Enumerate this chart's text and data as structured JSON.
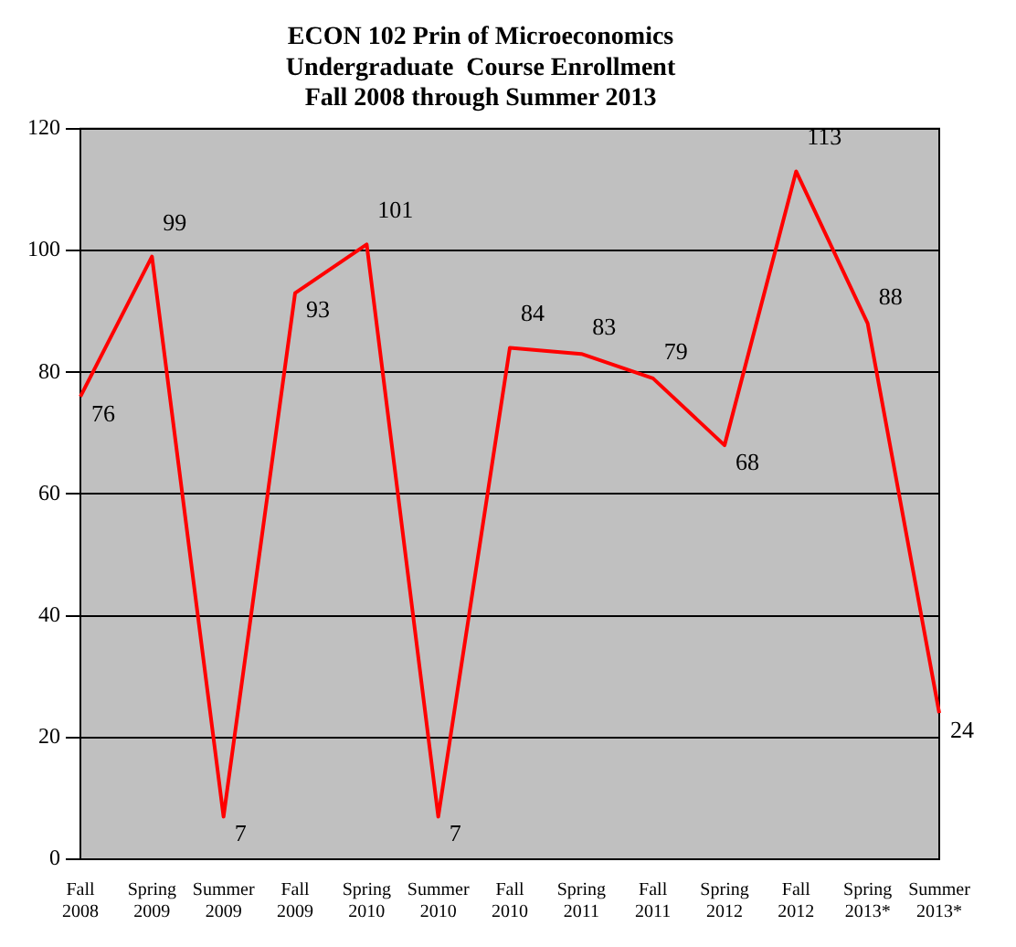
{
  "chart_data": {
    "type": "line",
    "title": [
      "ECON 102 Prin of Microeconomics",
      "Undergraduate  Course Enrollment",
      "Fall 2008 through Summer 2013"
    ],
    "categories": [
      "Fall 2008",
      "Spring 2009",
      "Summer 2009",
      "Fall 2009",
      "Spring 2010",
      "Summer 2010",
      "Fall 2010",
      "Spring 2011",
      "Fall 2011",
      "Spring 2012",
      "Fall 2012",
      "Spring 2013*",
      "Summer 2013*"
    ],
    "series": [
      {
        "color": "#ff0000",
        "values": [
          76,
          99,
          7,
          93,
          101,
          7,
          84,
          83,
          79,
          68,
          113,
          88,
          24
        ]
      }
    ],
    "ylim": [
      0,
      120
    ],
    "yticks": [
      0,
      20,
      40,
      60,
      80,
      100,
      120
    ],
    "grid": "y",
    "legend": false,
    "marker": "none",
    "data_labels": true
  }
}
